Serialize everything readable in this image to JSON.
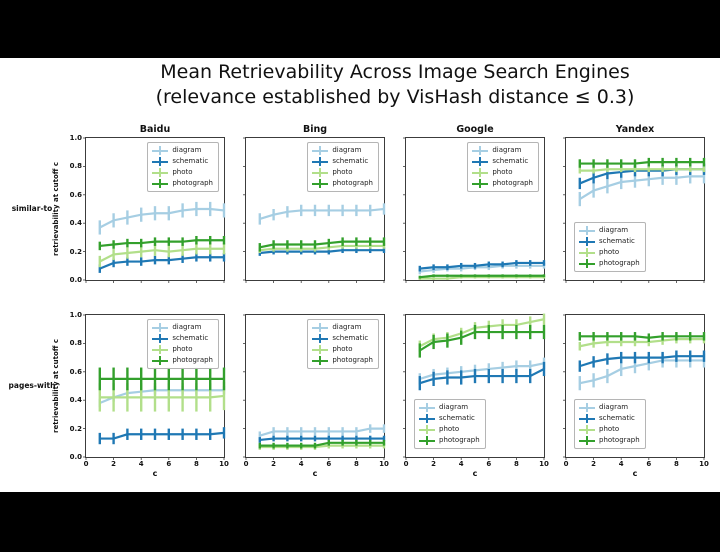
{
  "title": {
    "line1": "Mean Retrievability Across Image Search Engines",
    "line2": "(relevance established by VisHash distance ≤ 0.3)"
  },
  "row_labels": [
    "similar-to",
    "pages-with"
  ],
  "axes": {
    "xlabel": "c",
    "ylabel": "retrievability at cutoff c",
    "xticks": [
      0,
      2,
      4,
      6,
      8,
      10
    ],
    "yticks": [
      0.0,
      0.2,
      0.4,
      0.6,
      0.8,
      1.0
    ],
    "xlim": [
      0,
      10
    ],
    "ylim": [
      0.0,
      1.0
    ],
    "grid": false
  },
  "colors": {
    "diagram": "#a6cee3",
    "schematic": "#1f78b4",
    "photo": "#b2df8a",
    "photograph": "#33a02c"
  },
  "x": [
    1,
    2,
    3,
    4,
    5,
    6,
    7,
    8,
    9,
    10
  ],
  "chart_data": [
    {
      "type": "line",
      "engine": "Baidu",
      "row": "similar-to",
      "legend_position": "upper-right",
      "show_xticklabels": false,
      "show_yticklabels": true,
      "series": [
        {
          "name": "diagram",
          "values": [
            0.37,
            0.42,
            0.44,
            0.46,
            0.47,
            0.47,
            0.49,
            0.5,
            0.5,
            0.49
          ],
          "err": 0.05
        },
        {
          "name": "schematic",
          "values": [
            0.08,
            0.12,
            0.13,
            0.13,
            0.14,
            0.14,
            0.15,
            0.16,
            0.16,
            0.16
          ],
          "err": 0.03
        },
        {
          "name": "photo",
          "values": [
            0.13,
            0.18,
            0.19,
            0.2,
            0.21,
            0.2,
            0.21,
            0.22,
            0.22,
            0.22
          ],
          "err": 0.04
        },
        {
          "name": "photograph",
          "values": [
            0.24,
            0.25,
            0.26,
            0.26,
            0.27,
            0.27,
            0.27,
            0.28,
            0.28,
            0.28
          ],
          "err": 0.03
        }
      ]
    },
    {
      "type": "line",
      "engine": "Bing",
      "row": "similar-to",
      "legend_position": "upper-right",
      "show_xticklabels": false,
      "show_yticklabels": false,
      "series": [
        {
          "name": "diagram",
          "values": [
            0.43,
            0.46,
            0.48,
            0.49,
            0.49,
            0.49,
            0.49,
            0.49,
            0.49,
            0.5
          ],
          "err": 0.04
        },
        {
          "name": "schematic",
          "values": [
            0.19,
            0.2,
            0.2,
            0.2,
            0.2,
            0.2,
            0.21,
            0.21,
            0.21,
            0.21
          ],
          "err": 0.02
        },
        {
          "name": "photo",
          "values": [
            0.21,
            0.22,
            0.22,
            0.22,
            0.22,
            0.23,
            0.24,
            0.24,
            0.24,
            0.24
          ],
          "err": 0.02
        },
        {
          "name": "photograph",
          "values": [
            0.23,
            0.25,
            0.25,
            0.25,
            0.25,
            0.26,
            0.27,
            0.27,
            0.27,
            0.27
          ],
          "err": 0.03
        }
      ]
    },
    {
      "type": "line",
      "engine": "Google",
      "row": "similar-to",
      "legend_position": "upper-right",
      "show_xticklabels": false,
      "show_yticklabels": false,
      "series": [
        {
          "name": "diagram",
          "values": [
            0.06,
            0.07,
            0.08,
            0.08,
            0.09,
            0.09,
            0.1,
            0.1,
            0.1,
            0.1
          ],
          "err": 0.02
        },
        {
          "name": "schematic",
          "values": [
            0.08,
            0.09,
            0.09,
            0.1,
            0.1,
            0.11,
            0.11,
            0.12,
            0.12,
            0.12
          ],
          "err": 0.02
        },
        {
          "name": "photo",
          "values": [
            0.01,
            0.01,
            0.01,
            0.02,
            0.02,
            0.02,
            0.02,
            0.02,
            0.02,
            0.02
          ],
          "err": 0.01
        },
        {
          "name": "photograph",
          "values": [
            0.02,
            0.03,
            0.03,
            0.03,
            0.03,
            0.03,
            0.03,
            0.03,
            0.03,
            0.03
          ],
          "err": 0.01
        }
      ]
    },
    {
      "type": "line",
      "engine": "Yandex",
      "row": "similar-to",
      "legend_position": "lower-left",
      "show_xticklabels": false,
      "show_yticklabels": false,
      "series": [
        {
          "name": "diagram",
          "values": [
            0.57,
            0.63,
            0.66,
            0.69,
            0.7,
            0.71,
            0.72,
            0.72,
            0.73,
            0.73
          ],
          "err": 0.05
        },
        {
          "name": "schematic",
          "values": [
            0.68,
            0.72,
            0.75,
            0.76,
            0.77,
            0.77,
            0.77,
            0.78,
            0.78,
            0.78
          ],
          "err": 0.04
        },
        {
          "name": "photo",
          "values": [
            0.77,
            0.77,
            0.78,
            0.78,
            0.78,
            0.78,
            0.78,
            0.78,
            0.78,
            0.78
          ],
          "err": 0.02
        },
        {
          "name": "photograph",
          "values": [
            0.82,
            0.82,
            0.82,
            0.82,
            0.82,
            0.83,
            0.83,
            0.83,
            0.83,
            0.83
          ],
          "err": 0.03
        }
      ]
    },
    {
      "type": "line",
      "engine": "Baidu",
      "row": "pages-with",
      "legend_position": "upper-right",
      "show_xticklabels": true,
      "show_yticklabels": true,
      "series": [
        {
          "name": "diagram",
          "values": [
            0.38,
            0.42,
            0.45,
            0.46,
            0.47,
            0.47,
            0.47,
            0.47,
            0.47,
            0.47
          ],
          "err": 0.03
        },
        {
          "name": "schematic",
          "values": [
            0.13,
            0.13,
            0.16,
            0.16,
            0.16,
            0.16,
            0.16,
            0.16,
            0.16,
            0.17
          ],
          "err": 0.04
        },
        {
          "name": "photo",
          "values": [
            0.42,
            0.42,
            0.42,
            0.42,
            0.42,
            0.42,
            0.42,
            0.42,
            0.42,
            0.43
          ],
          "err": 0.1
        },
        {
          "name": "photograph",
          "values": [
            0.55,
            0.55,
            0.55,
            0.55,
            0.55,
            0.55,
            0.55,
            0.55,
            0.55,
            0.55
          ],
          "err": 0.08
        }
      ]
    },
    {
      "type": "line",
      "engine": "Bing",
      "row": "pages-with",
      "legend_position": "upper-right",
      "show_xticklabels": true,
      "show_yticklabels": false,
      "series": [
        {
          "name": "diagram",
          "values": [
            0.15,
            0.18,
            0.18,
            0.18,
            0.18,
            0.18,
            0.18,
            0.18,
            0.2,
            0.2
          ],
          "err": 0.03
        },
        {
          "name": "schematic",
          "values": [
            0.12,
            0.13,
            0.13,
            0.13,
            0.13,
            0.13,
            0.13,
            0.13,
            0.13,
            0.13
          ],
          "err": 0.02
        },
        {
          "name": "photo",
          "values": [
            0.07,
            0.07,
            0.07,
            0.07,
            0.07,
            0.08,
            0.08,
            0.08,
            0.08,
            0.08
          ],
          "err": 0.02
        },
        {
          "name": "photograph",
          "values": [
            0.08,
            0.08,
            0.08,
            0.08,
            0.08,
            0.1,
            0.1,
            0.1,
            0.1,
            0.1
          ],
          "err": 0.02
        }
      ]
    },
    {
      "type": "line",
      "engine": "Google",
      "row": "pages-with",
      "legend_position": "lower-left",
      "show_xticklabels": true,
      "show_yticklabels": false,
      "series": [
        {
          "name": "diagram",
          "values": [
            0.55,
            0.58,
            0.59,
            0.6,
            0.61,
            0.62,
            0.63,
            0.64,
            0.64,
            0.66
          ],
          "err": 0.04
        },
        {
          "name": "schematic",
          "values": [
            0.52,
            0.55,
            0.56,
            0.56,
            0.57,
            0.57,
            0.57,
            0.57,
            0.57,
            0.62
          ],
          "err": 0.05
        },
        {
          "name": "photo",
          "values": [
            0.78,
            0.83,
            0.84,
            0.87,
            0.91,
            0.92,
            0.93,
            0.93,
            0.95,
            0.97
          ],
          "err": 0.04
        },
        {
          "name": "photograph",
          "values": [
            0.75,
            0.81,
            0.82,
            0.84,
            0.88,
            0.88,
            0.88,
            0.88,
            0.88,
            0.88
          ],
          "err": 0.05
        }
      ]
    },
    {
      "type": "line",
      "engine": "Yandex",
      "row": "pages-with",
      "legend_position": "lower-left",
      "show_xticklabels": true,
      "show_yticklabels": false,
      "series": [
        {
          "name": "diagram",
          "values": [
            0.52,
            0.54,
            0.57,
            0.62,
            0.64,
            0.66,
            0.68,
            0.68,
            0.68,
            0.68
          ],
          "err": 0.05
        },
        {
          "name": "schematic",
          "values": [
            0.64,
            0.67,
            0.69,
            0.7,
            0.7,
            0.7,
            0.7,
            0.71,
            0.71,
            0.71
          ],
          "err": 0.04
        },
        {
          "name": "photo",
          "values": [
            0.78,
            0.8,
            0.81,
            0.81,
            0.81,
            0.81,
            0.82,
            0.83,
            0.83,
            0.83
          ],
          "err": 0.03
        },
        {
          "name": "photograph",
          "values": [
            0.85,
            0.85,
            0.85,
            0.85,
            0.85,
            0.84,
            0.85,
            0.85,
            0.85,
            0.85
          ],
          "err": 0.03
        }
      ]
    }
  ]
}
